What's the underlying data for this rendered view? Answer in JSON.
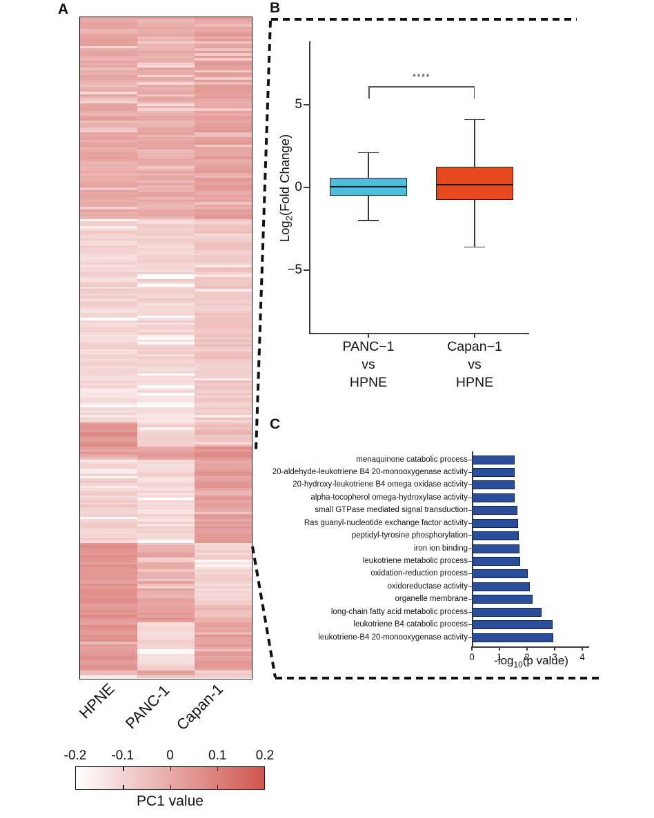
{
  "figure": {
    "panel_a_label": "A",
    "panel_b_label": "B",
    "panel_c_label": "C"
  },
  "chart_data": [
    {
      "id": "heatmap",
      "type": "heatmap",
      "description": "PC1 value heatmap of three cell lines, rows are features grouped in blocks",
      "columns": [
        "HPNE",
        "PANC-1",
        "Capan-1"
      ],
      "colorbar": {
        "title": "PC1 value",
        "tick_labels": [
          "-0.2",
          "-0.1",
          "0",
          "0.1",
          "0.2"
        ],
        "min": -0.2,
        "max": 0.2,
        "min_color": "#ffffff",
        "max_color": "#d0564f"
      },
      "segments": [
        {
          "frac": 0.306,
          "values": [
            0.0,
            -0.01,
            0.02
          ]
        },
        {
          "frac": 0.252,
          "values": [
            -0.1,
            -0.1,
            -0.07
          ]
        },
        {
          "frac": 0.056,
          "values": [
            -0.12,
            -0.12,
            -0.08
          ]
        },
        {
          "frac": 0.037,
          "values": [
            0.05,
            -0.09,
            -0.05
          ]
        },
        {
          "frac": 0.019,
          "values": [
            0.03,
            0.02,
            0.06
          ]
        },
        {
          "frac": 0.127,
          "values": [
            -0.09,
            -0.11,
            0.03
          ]
        },
        {
          "frac": 0.094,
          "values": [
            0.05,
            0.0,
            -0.1
          ]
        },
        {
          "frac": 0.026,
          "values": [
            0.05,
            0.04,
            -0.03
          ]
        },
        {
          "frac": 0.073,
          "values": [
            0.05,
            -0.11,
            0.03
          ]
        },
        {
          "frac": 0.011,
          "values": [
            -0.05,
            0.03,
            -0.08
          ]
        }
      ]
    },
    {
      "id": "fold_change_boxplot",
      "type": "box",
      "ylabel_pre": "Log",
      "ylabel_sub": "2",
      "ylabel_post": "(Fold Change)",
      "yticks": [
        5,
        0,
        -5
      ],
      "significance": "****",
      "groups": [
        {
          "label_lines": [
            "PANC−1",
            "vs",
            "HPNE"
          ],
          "color": "#4bbfd9",
          "min": -2.0,
          "q1": -0.5,
          "median": 0.05,
          "q3": 0.6,
          "max": 2.1
        },
        {
          "label_lines": [
            "Capan−1",
            "vs",
            "HPNE"
          ],
          "color": "#e5491d",
          "min": -3.6,
          "q1": -0.75,
          "median": 0.15,
          "q3": 1.25,
          "max": 4.1
        }
      ]
    },
    {
      "id": "go_enrichment",
      "type": "bar",
      "orientation": "horizontal",
      "bar_color": "#2b4e9c",
      "xlabel_pre": "-log",
      "xlabel_sub": "10",
      "xlabel_post": "(p value)",
      "xticks": [
        0,
        1,
        2,
        3,
        4
      ],
      "xlim": [
        0,
        4.25
      ],
      "categories": [
        "menaquinone catabolic process",
        "20-aldehyde-leukotriene B4 20-monooxygenase activity",
        "20-hydroxy-leukotriene B4 omega oxidase activity",
        "alpha-tocopherol omega-hydroxylase activity",
        "small GTPase mediated signal transduction",
        "Ras guanyl-nucleotide exchange factor activity",
        "peptidyl-tyrosine phosphorylation",
        "iron ion binding",
        "leukotriene metabolic process",
        "oxidation-reduction process",
        "oxidoreductase activity",
        "organelle membrane",
        "long-chain fatty acid metabolic process",
        "leukotriene B4 catabolic process",
        "leukotriene-B4 20-monooxygenase activity"
      ],
      "values": [
        1.55,
        1.55,
        1.55,
        1.55,
        1.65,
        1.68,
        1.7,
        1.73,
        1.75,
        2.03,
        2.1,
        2.2,
        2.53,
        2.93,
        2.95
      ]
    }
  ]
}
